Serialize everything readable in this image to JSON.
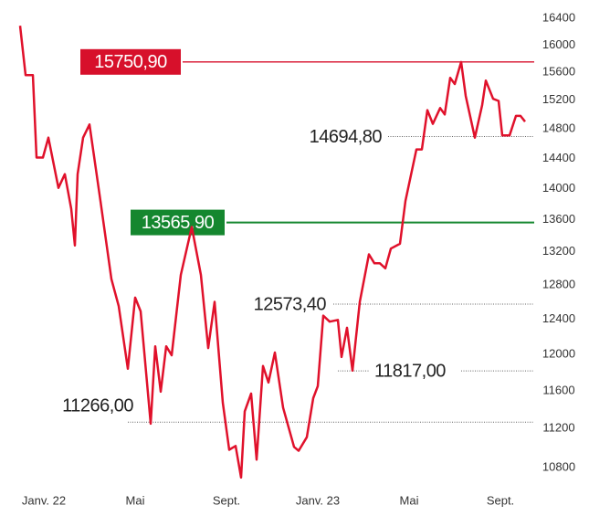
{
  "chart_data": {
    "type": "line",
    "color": "#e0112b",
    "log_scale_y": true,
    "x": [
      -1.04,
      -0.8,
      -0.48,
      -0.32,
      -0.04,
      0.2,
      0.64,
      0.92,
      1.2,
      1.36,
      1.48,
      1.72,
      2.0,
      2.48,
      2.96,
      3.28,
      3.68,
      4.0,
      4.24,
      4.68,
      4.88,
      5.12,
      5.36,
      5.6,
      6.0,
      6.48,
      6.88,
      7.2,
      7.48,
      7.84,
      8.12,
      8.4,
      8.64,
      8.8,
      9.08,
      9.32,
      9.6,
      9.84,
      10.12,
      10.48,
      10.96,
      11.16,
      11.52,
      11.8,
      12.0,
      12.24,
      12.52,
      12.88,
      13.04,
      13.28,
      13.52,
      13.84,
      14.24,
      14.48,
      14.72,
      14.96,
      15.2,
      15.6,
      15.84,
      16.32,
      16.56,
      16.8,
      17.04,
      17.36,
      17.56,
      17.8,
      18.0,
      18.28,
      18.48,
      18.88,
      19.2,
      19.36,
      19.68,
      19.92,
      20.08,
      20.4,
      20.68,
      20.88,
      21.08
    ],
    "values": [
      16290,
      15560,
      15560,
      14410,
      14410,
      14680,
      14010,
      14190,
      13740,
      13280,
      14190,
      14680,
      14860,
      13840,
      12870,
      12550,
      11840,
      12650,
      12490,
      11250,
      12090,
      11590,
      12090,
      11990,
      12920,
      13510,
      12920,
      12070,
      12600,
      11470,
      10980,
      11020,
      10700,
      11380,
      11570,
      10880,
      11870,
      11690,
      12020,
      11420,
      11010,
      10970,
      11110,
      11520,
      11650,
      12440,
      12370,
      12390,
      11970,
      12300,
      11820,
      12600,
      13170,
      13060,
      13060,
      13000,
      13240,
      13300,
      13840,
      14520,
      14520,
      15060,
      14870,
      15090,
      15000,
      15520,
      15430,
      15750,
      15260,
      14680,
      15130,
      15480,
      15220,
      15190,
      14710,
      14710,
      14980,
      14980,
      14900
    ],
    "xlim": [
      -1.2,
      21.2
    ],
    "xticks": [
      {
        "value": 0,
        "label": "Janv. 22"
      },
      {
        "value": 4,
        "label": "Mai"
      },
      {
        "value": 8,
        "label": "Sept."
      },
      {
        "value": 12,
        "label": "Janv. 23"
      },
      {
        "value": 16,
        "label": "Mai"
      },
      {
        "value": 20,
        "label": "Sept."
      }
    ],
    "ylim": [
      10600,
      16600
    ],
    "yticks": [
      10800,
      11200,
      11600,
      12000,
      12400,
      12800,
      13200,
      13600,
      14000,
      14400,
      14800,
      15200,
      15600,
      16000,
      16400
    ],
    "annotations": [
      {
        "value": 15750.9,
        "label": "15750,90",
        "color": "#d7102b"
      },
      {
        "value": 13565.9,
        "label": "13565,90",
        "color": "#15872f"
      },
      {
        "value": 14694.8,
        "label": "14694,80"
      },
      {
        "value": 12573.4,
        "label": "12573,40"
      },
      {
        "value": 11817,
        "label": "11817,00"
      },
      {
        "value": 11266,
        "label": "11266,00"
      }
    ]
  }
}
